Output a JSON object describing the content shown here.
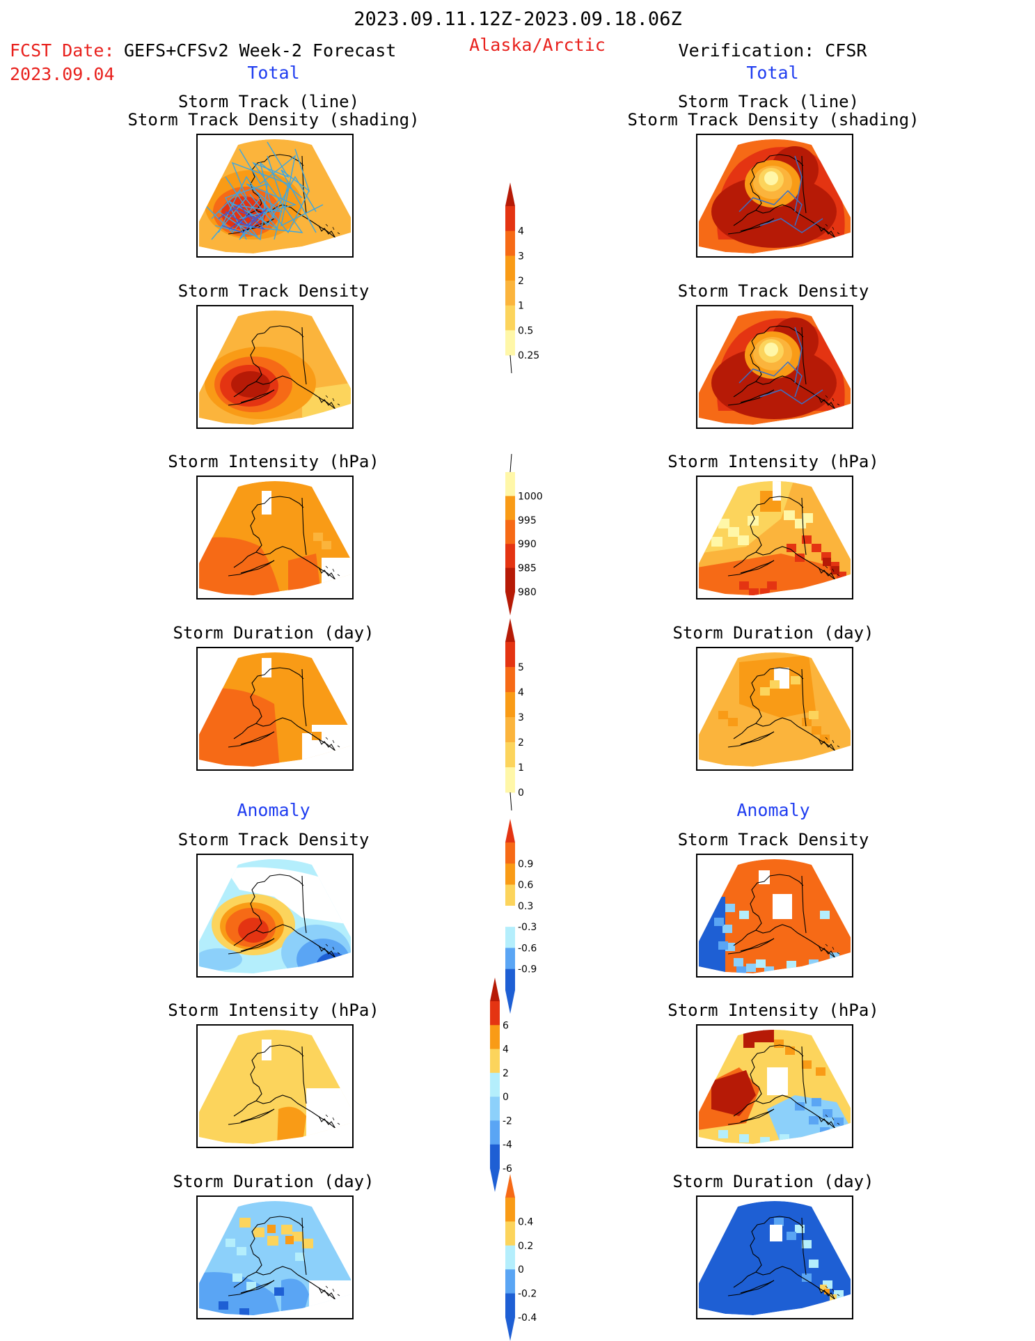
{
  "header": {
    "valid_period": "2023.09.11.12Z-2023.09.18.06Z",
    "fcst_date_label": "FCST Date:",
    "forecast_name": "GEFS+CFSv2 Week-2 Forecast",
    "fcst_date": "2023.09.04",
    "region": "Alaska/Arctic",
    "verification": "Verification: CFSR"
  },
  "sections": {
    "total": "Total",
    "anomaly": "Anomaly"
  },
  "panel_titles": {
    "track_line": "Storm Track (line)",
    "track_shading": "Storm Track Density (shading)",
    "density": "Storm Track Density",
    "intensity": "Storm Intensity (hPa)",
    "duration": "Storm Duration (day)"
  },
  "colors": {
    "light_yellow": "#fff7a8",
    "yellow": "#fcd45c",
    "light_orange": "#fbb43c",
    "orange": "#f99b16",
    "dark_orange": "#f66a16",
    "red": "#e43412",
    "dark_red": "#b61a06",
    "light_cyan": "#b4eefc",
    "light_blue": "#8cd0fa",
    "blue": "#5aa5f4",
    "dark_blue": "#1e5fd4",
    "track_line_forecast": "#3aa6e4",
    "track_line_verification": "#3870c8",
    "coastline": "#000000"
  },
  "colorbars": [
    {
      "name": "total-density-colorbar",
      "labels": [
        "4",
        "3",
        "2",
        "1",
        "0.5",
        "0.25"
      ]
    },
    {
      "name": "total-intensity-colorbar",
      "labels": [
        "1000",
        "995",
        "990",
        "985",
        "980"
      ]
    },
    {
      "name": "total-duration-colorbar",
      "labels": [
        "5",
        "4",
        "3",
        "2",
        "1",
        "0"
      ]
    },
    {
      "name": "anomaly-density-colorbar",
      "labels": [
        "0.9",
        "0.6",
        "0.3",
        "-0.3",
        "-0.6",
        "-0.9"
      ]
    },
    {
      "name": "anomaly-intensity-colorbar",
      "labels": [
        "6",
        "4",
        "2",
        "0",
        "-2",
        "-4",
        "-6"
      ]
    },
    {
      "name": "anomaly-duration-colorbar",
      "labels": [
        "0.4",
        "0.2",
        "0",
        "-0.2",
        "-0.4"
      ]
    }
  ]
}
